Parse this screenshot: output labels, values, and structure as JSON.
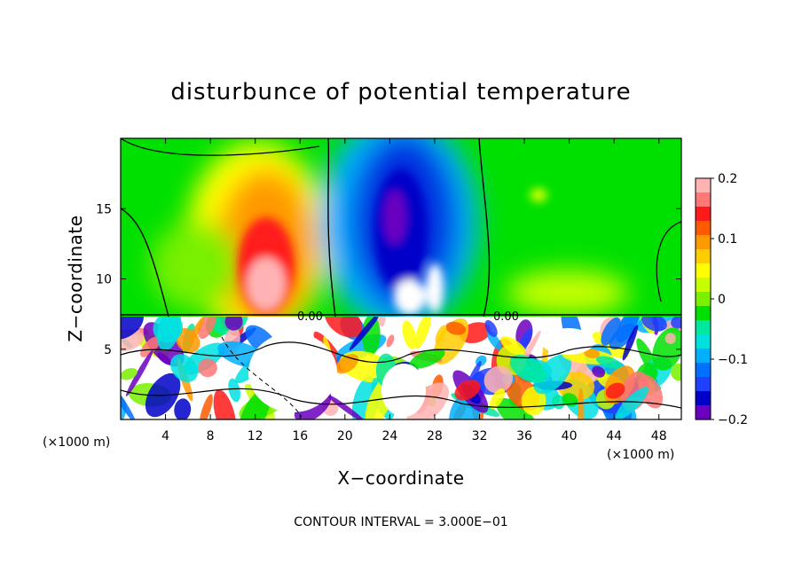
{
  "chart_data": {
    "type": "heatmap",
    "title": "disturbunce of potential temperature",
    "xlabel": "X−coordinate",
    "ylabel": "Z−coordinate",
    "x_unit": "(×1000 m)",
    "z_unit": "(×1000 m)",
    "xlim": [
      0,
      50
    ],
    "ylim": [
      0,
      20
    ],
    "x_ticks": [
      4,
      8,
      12,
      16,
      20,
      24,
      28,
      32,
      36,
      40,
      44,
      48
    ],
    "y_ticks": [
      5,
      10,
      15
    ],
    "colorbar": {
      "min": -0.2,
      "max": 0.2,
      "ticks": [
        0.2,
        0.1,
        0,
        -0.1,
        -0.2
      ],
      "tick_labels": [
        "0.2",
        "0.1",
        "0",
        "−0.1",
        "−0.2"
      ],
      "colors": [
        "#ffb3b3",
        "#ff7777",
        "#ff1a1a",
        "#ff5a00",
        "#ff9900",
        "#ffcc00",
        "#ffff00",
        "#c8ff00",
        "#78f000",
        "#00e000",
        "#00e8a0",
        "#00e0e0",
        "#00b0ff",
        "#0070ff",
        "#2040ff",
        "#0000c8",
        "#6a00c0"
      ]
    },
    "contour_labels": [
      "0.00",
      "0.00"
    ],
    "contour_interval_text": "CONTOUR INTERVAL = 3.000E−01",
    "features": [
      {
        "name": "warm anomaly",
        "x": 13,
        "z": 11,
        "value": 0.2
      },
      {
        "name": "cold anomaly",
        "x": 24.5,
        "z": 14,
        "value": -0.2
      },
      {
        "name": "noisy lower layer",
        "z_top": 7.5
      }
    ]
  }
}
